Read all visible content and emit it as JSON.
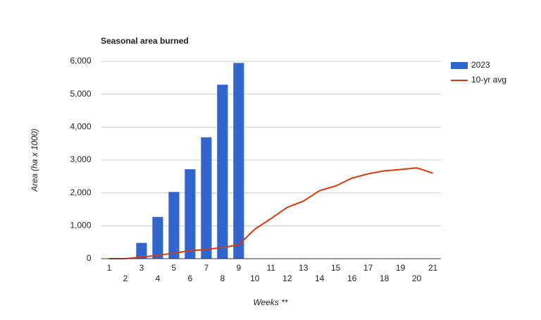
{
  "chart_data": {
    "type": "combo",
    "title": "Seasonal area burned",
    "x_label": "Weeks **",
    "y_label": "Area (ha x 1000)",
    "categories": [
      "1",
      "2",
      "3",
      "4",
      "5",
      "6",
      "7",
      "8",
      "9",
      "10",
      "11",
      "12",
      "13",
      "14",
      "15",
      "16",
      "17",
      "18",
      "19",
      "20",
      "21"
    ],
    "series": [
      {
        "name": "2023",
        "type": "bar",
        "color": "#3366cc",
        "values": [
          0,
          0,
          480,
          1270,
          2030,
          2720,
          3690,
          5290,
          5950,
          0,
          0,
          0,
          0,
          0,
          0,
          0,
          0,
          0,
          0,
          0,
          0
        ]
      },
      {
        "name": "10-yr avg",
        "type": "line",
        "color": "#dc3912",
        "values": [
          0,
          0,
          50,
          100,
          170,
          240,
          280,
          340,
          420,
          900,
          1220,
          1560,
          1750,
          2070,
          2210,
          2450,
          2580,
          2670,
          2710,
          2760,
          2600
        ]
      }
    ],
    "ylim": [
      0,
      6000
    ],
    "yticks": [
      0,
      {
        "value": 1000,
        "label": "1,000"
      },
      {
        "value": 2000,
        "label": "2,000"
      },
      {
        "value": 3000,
        "label": "3,000"
      },
      {
        "value": 4000,
        "label": "4,000"
      },
      {
        "value": 5000,
        "label": "5,000"
      },
      {
        "value": 6000,
        "label": "6,000"
      }
    ],
    "grid": true,
    "legend": "right"
  }
}
